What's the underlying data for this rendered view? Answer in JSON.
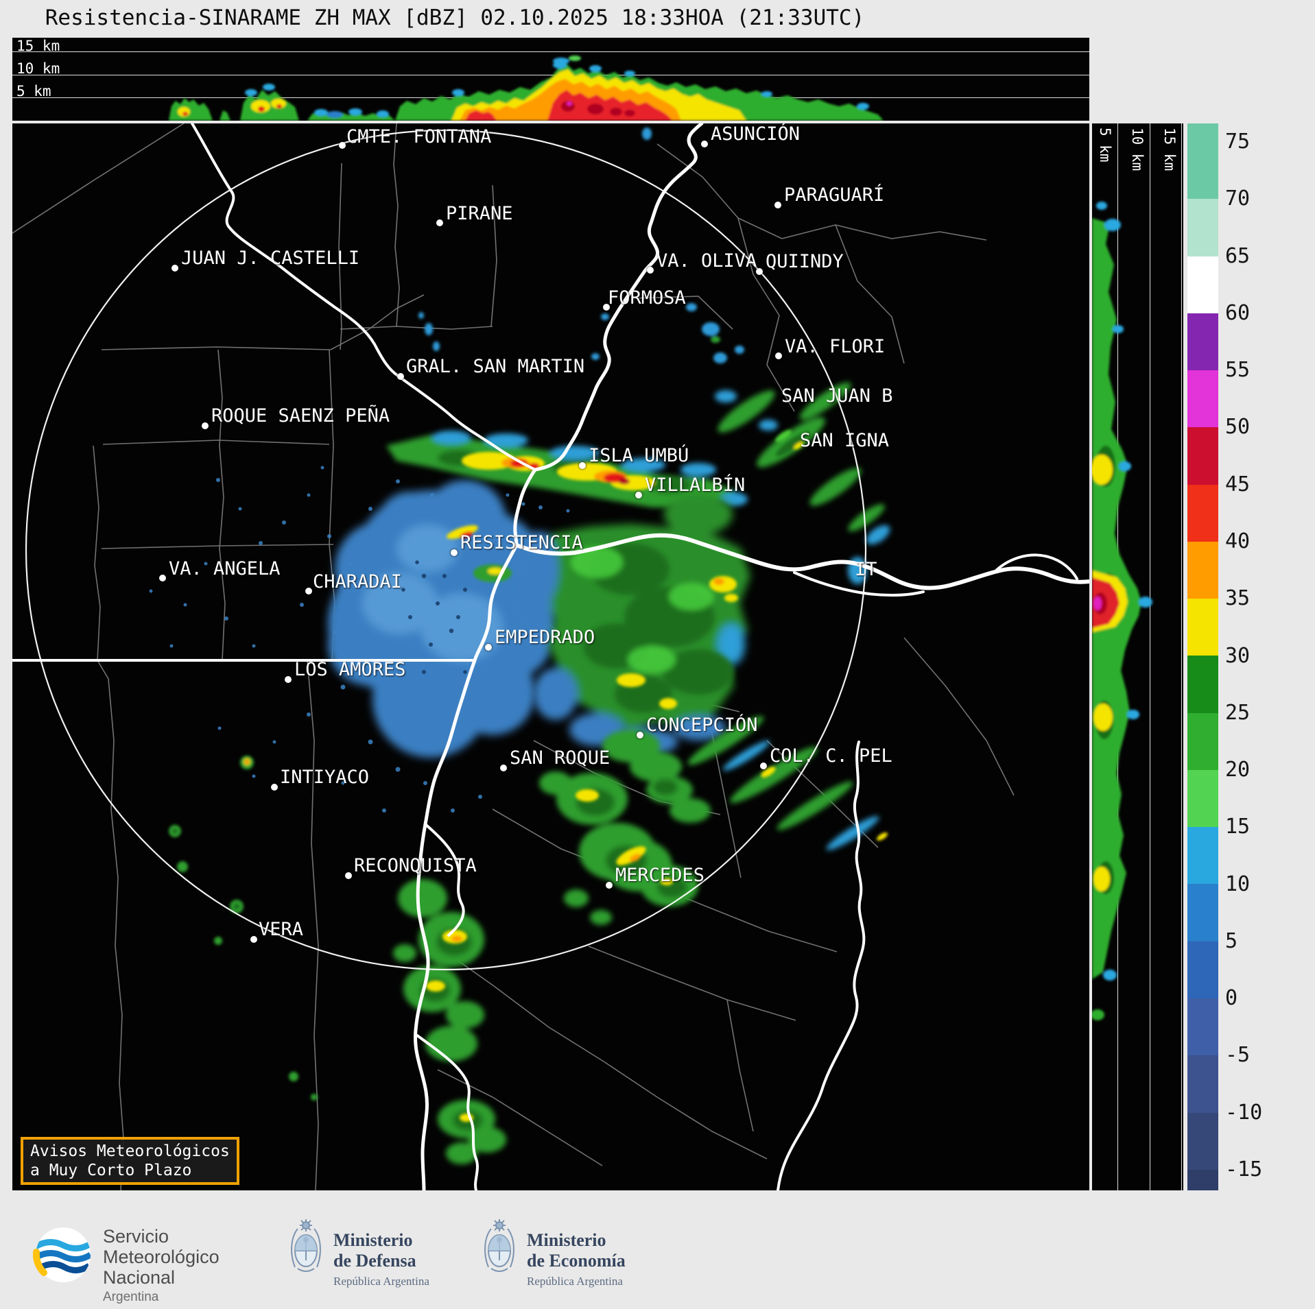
{
  "title": "Resistencia-SINARAME ZH MAX [dBZ] 02.10.2025 18:33HOA (21:33UTC)",
  "cross_top": {
    "labels": [
      "15 km",
      "10 km",
      "5 km"
    ]
  },
  "cross_right": {
    "labels": [
      "5 km",
      "10 km",
      "15 km"
    ]
  },
  "colorbar": {
    "ticks": [
      75,
      70,
      65,
      60,
      55,
      50,
      45,
      40,
      35,
      30,
      25,
      20,
      15,
      10,
      5,
      0,
      -5,
      -10,
      -15
    ],
    "colors": [
      "#6cc9a6",
      "#6cc9a6",
      "#b2e3cf",
      "#ffffff",
      "#8426b0",
      "#e234d8",
      "#cc0f2f",
      "#f03018",
      "#ff9c00",
      "#f5e400",
      "#188c18",
      "#2fae2f",
      "#52d452",
      "#29a8e0",
      "#2980cc",
      "#2e66b8",
      "#3f5fa8",
      "#3c5390",
      "#364878",
      "#2f3e68"
    ]
  },
  "map": {
    "cities": [
      {
        "name": "CMTE. FONTANA",
        "dot": [
          499,
          212
        ],
        "label": [
          505,
          186
        ]
      },
      {
        "name": "ASUNCIÓN",
        "dot": [
          1027,
          210
        ],
        "label": [
          1036,
          182
        ]
      },
      {
        "name": "PIRANE",
        "dot": [
          641,
          325
        ],
        "label": [
          650,
          298
        ]
      },
      {
        "name": "PARAGUARÍ",
        "dot": [
          1134,
          299
        ],
        "label": [
          1143,
          271
        ]
      },
      {
        "name": "JUAN J. CASTELLI",
        "dot": [
          255,
          391
        ],
        "label": [
          264,
          363
        ]
      },
      {
        "name": "VA. OLIVA",
        "dot": [
          948,
          394
        ],
        "label": [
          957,
          367
        ]
      },
      {
        "name": "QUIINDY",
        "dot": [
          1107,
          396
        ],
        "label": [
          1116,
          368
        ]
      },
      {
        "name": "FORMOSA",
        "dot": [
          884,
          448
        ],
        "label": [
          886,
          421
        ]
      },
      {
        "name": "VA. FLORI",
        "dot": [
          1135,
          519
        ],
        "label": [
          1144,
          492
        ]
      },
      {
        "name": "GRAL. SAN MARTIN",
        "dot": [
          584,
          549
        ],
        "label": [
          592,
          521
        ]
      },
      {
        "name": "SAN JUAN B",
        "dot": null,
        "label": [
          1139,
          564
        ]
      },
      {
        "name": "ROQUE SAENZ PEÑA",
        "dot": [
          299,
          621
        ],
        "label": [
          308,
          593
        ]
      },
      {
        "name": "SAN IGNA",
        "dot": null,
        "label": [
          1166,
          629
        ]
      },
      {
        "name": "ISLA UMBÚ",
        "dot": [
          849,
          679
        ],
        "label": [
          858,
          651
        ]
      },
      {
        "name": "VILLALBÍN",
        "dot": [
          931,
          722
        ],
        "label": [
          940,
          694
        ]
      },
      {
        "name": "RESISTENCIA",
        "dot": [
          662,
          806
        ],
        "label": [
          671,
          778
        ]
      },
      {
        "name": "VA. ANGELA",
        "dot": [
          237,
          843
        ],
        "label": [
          246,
          816
        ]
      },
      {
        "name": "CHARADAI",
        "dot": [
          450,
          862
        ],
        "label": [
          456,
          835
        ]
      },
      {
        "name": "IT",
        "dot": null,
        "label": [
          1246,
          817
        ]
      },
      {
        "name": "EMPEDRADO",
        "dot": [
          712,
          944
        ],
        "label": [
          721,
          916
        ]
      },
      {
        "name": "LOS AMORES",
        "dot": [
          420,
          991
        ],
        "label": [
          429,
          963
        ]
      },
      {
        "name": "CONCEPCIÓN",
        "dot": [
          933,
          1072
        ],
        "label": [
          942,
          1044
        ]
      },
      {
        "name": "SAN ROQUE",
        "dot": [
          734,
          1120
        ],
        "label": [
          743,
          1092
        ]
      },
      {
        "name": "COL. C. PEL",
        "dot": [
          1113,
          1117
        ],
        "label": [
          1122,
          1089
        ]
      },
      {
        "name": "INTIYACO",
        "dot": [
          400,
          1148
        ],
        "label": [
          408,
          1120
        ]
      },
      {
        "name": "RECONQUISTA",
        "dot": [
          508,
          1277
        ],
        "label": [
          516,
          1249
        ]
      },
      {
        "name": "MERCEDES",
        "dot": [
          888,
          1291
        ],
        "label": [
          897,
          1263
        ]
      },
      {
        "name": "VERA",
        "dot": [
          370,
          1370
        ],
        "label": [
          377,
          1342
        ]
      }
    ]
  },
  "alert_box": {
    "line1": "Avisos Meteorológicos",
    "line2": "a Muy Corto Plazo",
    "border_color": "#f0a202"
  },
  "footer": {
    "smn": {
      "line1": "Servicio",
      "line2": "Meteorológico",
      "line3": "Nacional",
      "line4": "Argentina"
    },
    "defensa": {
      "line1": "Ministerio",
      "line2": "de Defensa",
      "line3": "República Argentina"
    },
    "economia": {
      "line1": "Ministerio",
      "line2": "de Economía",
      "line3": "República Argentina"
    }
  },
  "colors": {
    "background": "#e9e9e9",
    "panel": "#030303",
    "river": "#ffffff",
    "boundary": "#7e7e7e",
    "city_text": "#ffffff"
  }
}
